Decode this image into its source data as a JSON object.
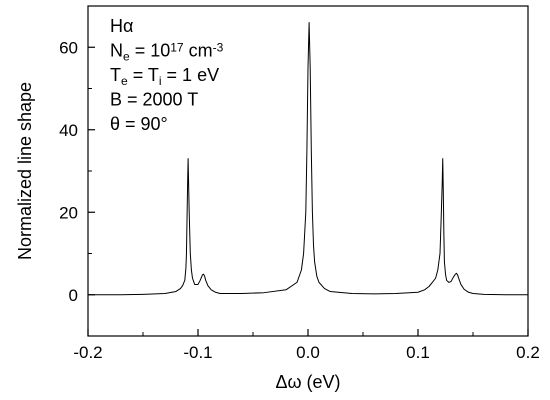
{
  "chart_data": {
    "type": "line",
    "xlabel": "Δω (eV)",
    "ylabel": "Normalized line shape",
    "xlim": [
      -0.2,
      0.2
    ],
    "ylim": [
      -10,
      70
    ],
    "xticks": [
      -0.2,
      -0.1,
      0.0,
      0.1,
      0.2
    ],
    "xtick_labels": [
      "-0.2",
      "-0.1",
      "0.0",
      "0.1",
      "0.2"
    ],
    "yticks": [
      0,
      20,
      40,
      60
    ],
    "ytick_labels": [
      "0",
      "20",
      "40",
      "60"
    ],
    "grid": false,
    "legend": "none",
    "annotation_lines": [
      {
        "id": "line",
        "parts": [
          {
            "t": "Hα"
          }
        ]
      },
      {
        "id": "density",
        "parts": [
          {
            "t": "N"
          },
          {
            "t": "e",
            "sub": true
          },
          {
            "t": " = 10"
          },
          {
            "t": "17",
            "sup": true
          },
          {
            "t": " cm"
          },
          {
            "t": "-3",
            "sup": true
          }
        ]
      },
      {
        "id": "temperature",
        "parts": [
          {
            "t": "T"
          },
          {
            "t": "e",
            "sub": true
          },
          {
            "t": " = T"
          },
          {
            "t": "i",
            "sub": true
          },
          {
            "t": " = 1 eV"
          }
        ]
      },
      {
        "id": "field",
        "parts": [
          {
            "t": "B = 2000 T"
          }
        ]
      },
      {
        "id": "angle",
        "parts": [
          {
            "t": "θ = 90°"
          }
        ]
      }
    ],
    "series": [
      {
        "color": "#000000",
        "x": [
          -0.2,
          -0.17,
          -0.15,
          -0.13,
          -0.12,
          -0.116,
          -0.114,
          -0.112,
          -0.111,
          -0.1105,
          -0.11,
          -0.1095,
          -0.109,
          -0.108,
          -0.107,
          -0.106,
          -0.105,
          -0.103,
          -0.1,
          -0.098,
          -0.096,
          -0.095,
          -0.094,
          -0.093,
          -0.091,
          -0.088,
          -0.084,
          -0.08,
          -0.06,
          -0.04,
          -0.02,
          -0.01,
          -0.006,
          -0.004,
          -0.002,
          -0.001,
          0.0,
          0.001,
          0.002,
          0.003,
          0.004,
          0.005,
          0.006,
          0.008,
          0.01,
          0.015,
          0.02,
          0.04,
          0.06,
          0.08,
          0.1,
          0.106,
          0.11,
          0.113,
          0.116,
          0.118,
          0.12,
          0.121,
          0.122,
          0.1225,
          0.123,
          0.1235,
          0.124,
          0.125,
          0.126,
          0.128,
          0.13,
          0.132,
          0.134,
          0.135,
          0.136,
          0.137,
          0.139,
          0.142,
          0.146,
          0.15,
          0.16,
          0.18,
          0.2
        ],
        "y": [
          0,
          0,
          0.1,
          0.3,
          0.8,
          1.5,
          2.2,
          3.5,
          6.5,
          10,
          18,
          26,
          33,
          20,
          10,
          6,
          4,
          2.5,
          2.5,
          3.5,
          4.8,
          5.0,
          4.5,
          3.5,
          2.2,
          1.2,
          0.6,
          0.3,
          0.3,
          0.5,
          1.2,
          3,
          6,
          10,
          20,
          35,
          55,
          66,
          55,
          35,
          20,
          12,
          8,
          4.5,
          3,
          1.5,
          0.8,
          0.3,
          0.2,
          0.3,
          0.6,
          1.2,
          2,
          3,
          4,
          6,
          10,
          18,
          27,
          33,
          25,
          15,
          8,
          5,
          3.5,
          3.0,
          3.2,
          4.2,
          5.0,
          5.2,
          4.8,
          4.0,
          2.5,
          1.3,
          0.6,
          0.3,
          0.1,
          0,
          0
        ]
      }
    ]
  }
}
